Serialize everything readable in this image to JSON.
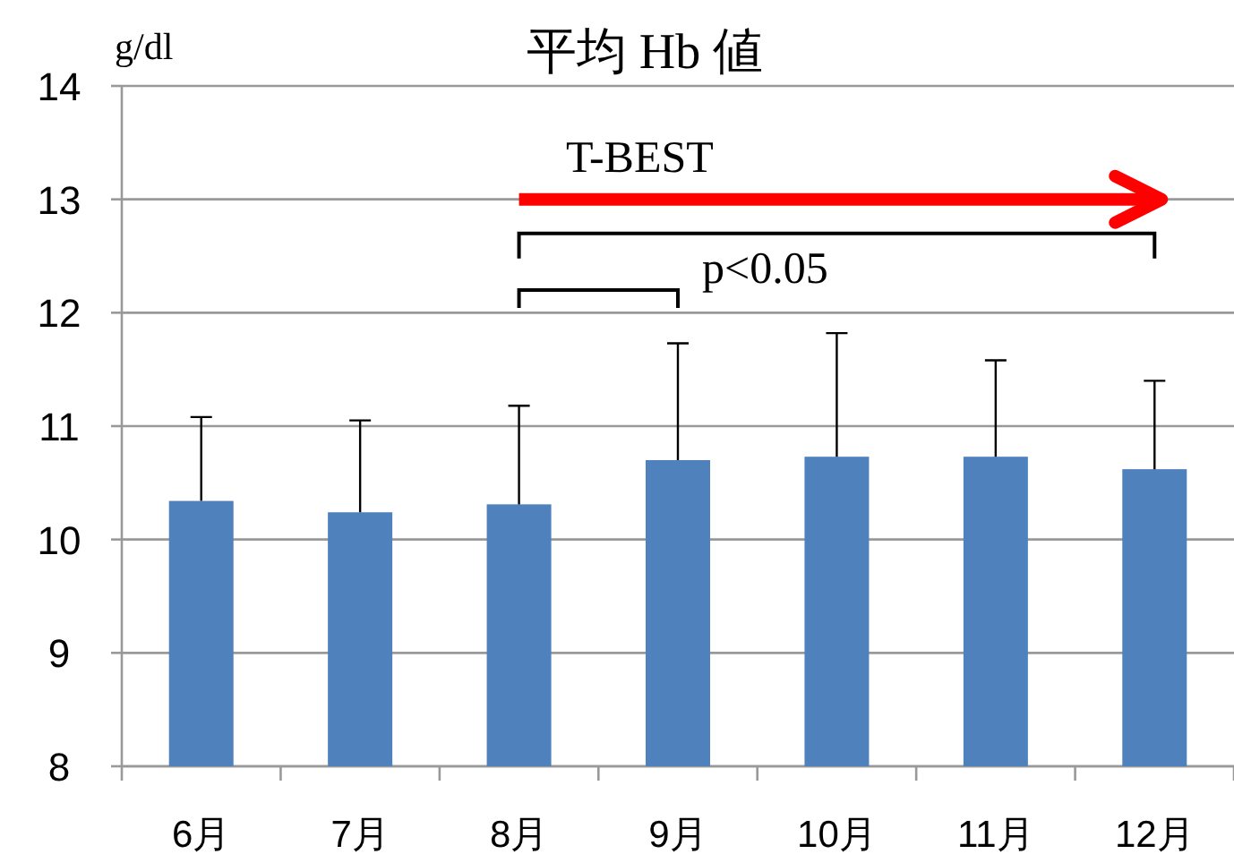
{
  "chart_data": {
    "type": "bar",
    "title": "平均 Hb 値",
    "ylabel": "g/dl",
    "categories": [
      "6月",
      "7月",
      "8月",
      "9月",
      "10月",
      "11月",
      "12月"
    ],
    "values": [
      10.34,
      10.24,
      10.31,
      10.7,
      10.73,
      10.73,
      10.62
    ],
    "errors": [
      [
        10.34,
        11.08
      ],
      [
        10.24,
        11.05
      ],
      [
        10.31,
        11.18
      ],
      [
        10.7,
        11.73
      ],
      [
        10.73,
        11.82
      ],
      [
        10.73,
        11.58
      ],
      [
        10.62,
        11.4
      ]
    ],
    "color": "#4f81bd",
    "ylim": [
      8,
      14
    ],
    "yticks": [
      8,
      9,
      10,
      11,
      12,
      13,
      14
    ],
    "grid": "y",
    "annotations": [
      "T-BEST",
      "p<0.05"
    ]
  }
}
